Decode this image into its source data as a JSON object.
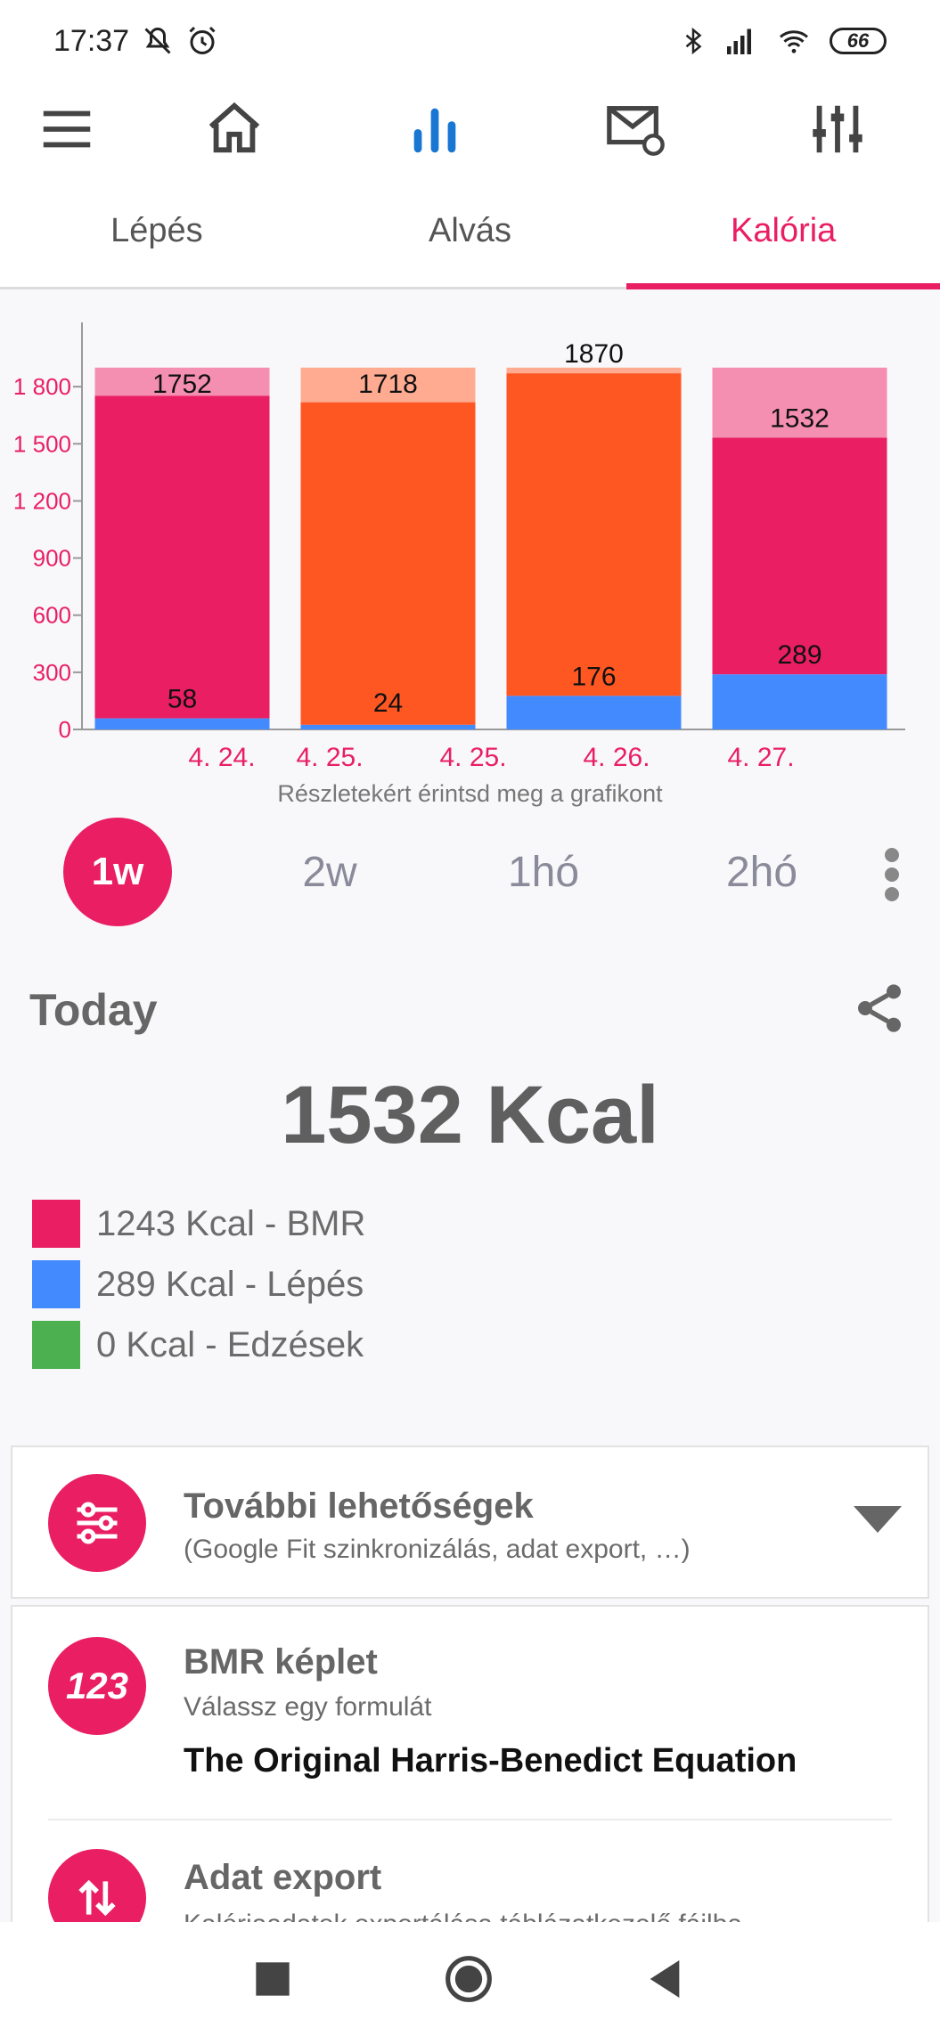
{
  "status_bar": {
    "time": "17:37",
    "battery": "66",
    "icons": [
      "mute-icon",
      "alarm-icon",
      "bluetooth-icon",
      "signal-icon",
      "wifi-icon",
      "battery-icon"
    ]
  },
  "toolbar": {
    "icons": [
      "menu-icon",
      "home-icon",
      "bar-chart-icon",
      "mail-icon",
      "equalizer-icon"
    ],
    "active_color": "#1976d2"
  },
  "tabs": [
    {
      "label": "Lépés"
    },
    {
      "label": "Alvás"
    },
    {
      "label": "Kalória",
      "active": true
    }
  ],
  "chart_data": {
    "type": "bar",
    "stacked": true,
    "categories": [
      "4. 24.",
      "4. 25.",
      "4. 25.",
      "4. 26.",
      "4. 27."
    ],
    "ylim": [
      0,
      2100
    ],
    "yticks": [
      0,
      300,
      600,
      900,
      1200,
      1500,
      1800
    ],
    "ytick_labels": [
      "0",
      "300",
      "600",
      "900",
      "1 200",
      "1 500",
      "1 800"
    ],
    "bars": [
      {
        "total": 1752,
        "steps": 58,
        "bmr": 1694,
        "bmr_color": "#e91e63",
        "rest_color": "#f48fb1"
      },
      {
        "total": 1718,
        "steps": 24,
        "bmr": 1694,
        "bmr_color": "#ff5722",
        "rest_color": "#ffab91"
      },
      {
        "total": 1870,
        "steps": 176,
        "bmr": 1694,
        "bmr_color": "#ff5722",
        "rest_color": "#ffab91"
      },
      {
        "total": 1532,
        "steps": 289,
        "bmr": 1243,
        "bmr_color": "#e91e63",
        "rest_color": "#f48fb1"
      }
    ],
    "steps_color": "#448aff",
    "max_total_bar_level": 1900,
    "grid": false
  },
  "chart_hint": "Részletekért érintsd meg a grafikont",
  "periods": [
    {
      "label": "1w",
      "active": true
    },
    {
      "label": "2w"
    },
    {
      "label": "1hó"
    },
    {
      "label": "2hó"
    }
  ],
  "today": {
    "title": "Today",
    "total": "1532 Kcal",
    "legend": [
      {
        "label": "1243 Kcal - BMR",
        "color": "#e91e63"
      },
      {
        "label": "289 Kcal - Lépés",
        "color": "#448aff"
      },
      {
        "label": "0 Kcal - Edzések",
        "color": "#4caf50"
      }
    ]
  },
  "more_options": {
    "title": "További lehetőségek",
    "subtitle": "(Google Fit szinkronizálás, adat export, …)"
  },
  "bmr_formula": {
    "title": "BMR képlet",
    "subtitle": "Válassz egy formulát",
    "value": "The Original Harris-Benedict Equation",
    "icon_text": "123"
  },
  "data_export": {
    "title": "Adat export",
    "subtitle": "Kalóriaadatok exportálása táblázatkezelő fájlba"
  },
  "accent": "#e91e63"
}
